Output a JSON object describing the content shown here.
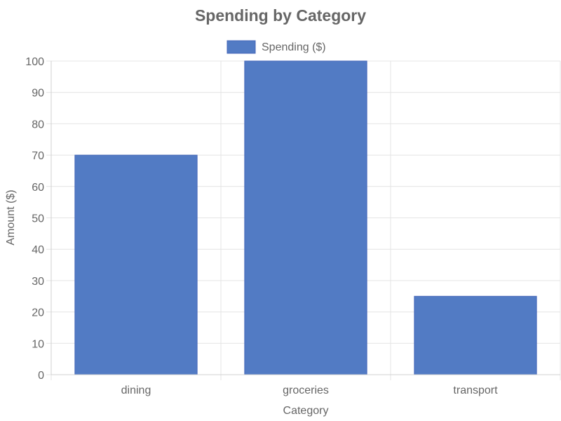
{
  "chart_data": {
    "type": "bar",
    "title": "Spending by Category",
    "xlabel": "Category",
    "ylabel": "Amount ($)",
    "categories": [
      "dining",
      "groceries",
      "transport"
    ],
    "series": [
      {
        "name": "Spending ($)",
        "values": [
          70,
          100,
          25
        ],
        "color": "#527bc4",
        "border_color": "#4466b8"
      }
    ],
    "ylim": [
      0,
      100
    ],
    "yticks": [
      "0",
      "10",
      "20",
      "30",
      "40",
      "50",
      "60",
      "70",
      "80",
      "90",
      "100"
    ],
    "grid": true,
    "legend_position": "top"
  }
}
